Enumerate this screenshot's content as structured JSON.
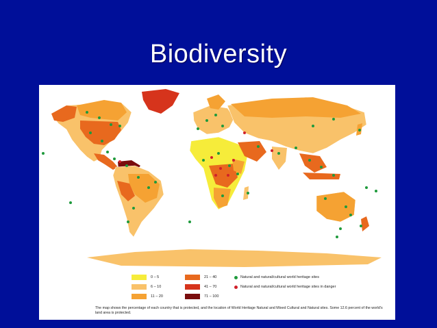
{
  "slide": {
    "title": "Biodiversity"
  },
  "legend": {
    "ranges": [
      {
        "label": "0 – 5",
        "color": "#f6ec3a"
      },
      {
        "label": "6 – 10",
        "color": "#f9c26a"
      },
      {
        "label": "11 – 20",
        "color": "#f5a233"
      },
      {
        "label": "21 – 40",
        "color": "#e8691e"
      },
      {
        "label": "41 – 70",
        "color": "#d6341c"
      },
      {
        "label": "71 – 100",
        "color": "#7a0d0d"
      }
    ],
    "markers": [
      {
        "label": "Natural and natural/cultural world heritage sites",
        "color": "#1e9a3c"
      },
      {
        "label": "Natural and natural/cultural world heritage sites in danger",
        "color": "#d0202a"
      }
    ]
  },
  "caption": "The map shows the percentage of each country that is protected, and the location of World Heritage Natural and Mixed Cultural and Natural sites. Some 12.6 percent of the world's land area is protected."
}
